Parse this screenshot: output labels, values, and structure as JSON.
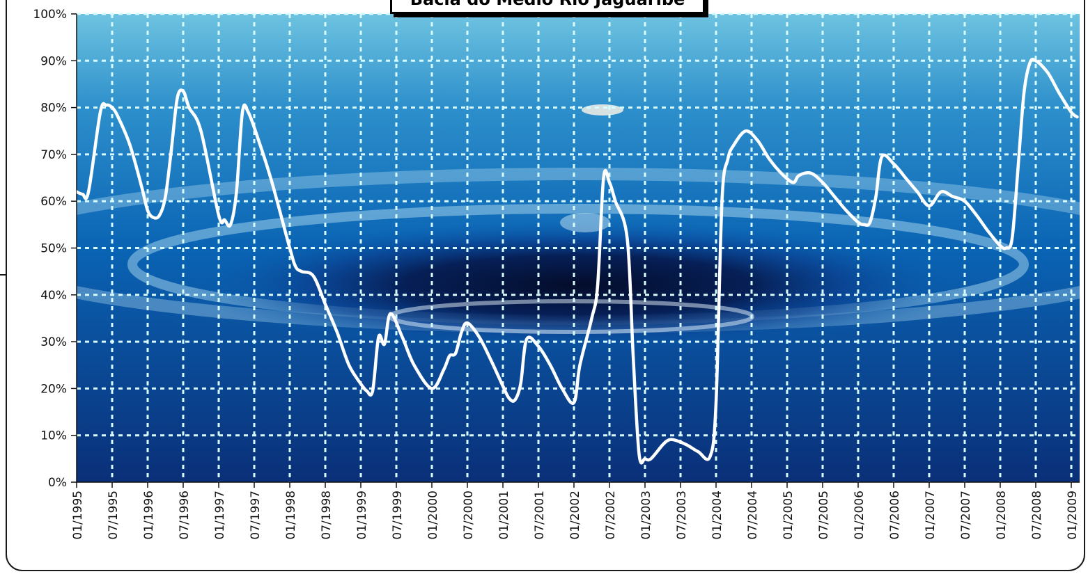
{
  "title": "Bacia do Médio Rio Jaguaribe",
  "colors": {
    "line": "#ffffff",
    "grid": "#d8fbff",
    "plot_top": "#6ec3e0",
    "plot_mid": "#0a64b4",
    "plot_bottom": "#0a2f78",
    "ripple_dark": "#030c2a"
  },
  "chart_data": {
    "type": "line",
    "title": "Bacia do Médio Rio Jaguaribe",
    "xlabel": "",
    "ylabel": "",
    "ylim": [
      0,
      100
    ],
    "y_ticks": [
      "0%",
      "10%",
      "20%",
      "30%",
      "40%",
      "50%",
      "60%",
      "70%",
      "80%",
      "90%",
      "100%"
    ],
    "x_ticks": [
      "01/1995",
      "07/1995",
      "01/1996",
      "07/1996",
      "01/1997",
      "07/1997",
      "01/1998",
      "07/1998",
      "01/1999",
      "07/1999",
      "01/2000",
      "07/2000",
      "01/2001",
      "07/2001",
      "01/2002",
      "07/2002",
      "01/2003",
      "07/2003",
      "01/2004",
      "07/2004",
      "01/2005",
      "07/2005",
      "01/2006",
      "07/2006",
      "01/2007",
      "07/2007",
      "01/2008",
      "07/2008",
      "01/2009"
    ],
    "grid": true,
    "x_range": [
      "1995-01",
      "2009-01"
    ],
    "series": [
      {
        "name": "",
        "points": [
          [
            "1995-01",
            62
          ],
          [
            "1995-02",
            61.5
          ],
          [
            "1995-03",
            62
          ],
          [
            "1995-05",
            79
          ],
          [
            "1995-06",
            80.5
          ],
          [
            "1995-07",
            80
          ],
          [
            "1995-08",
            78
          ],
          [
            "1995-10",
            72
          ],
          [
            "1995-12",
            63
          ],
          [
            "1996-01",
            58
          ],
          [
            "1996-02",
            56.5
          ],
          [
            "1996-03",
            57
          ],
          [
            "1996-04",
            61
          ],
          [
            "1996-05",
            71
          ],
          [
            "1996-06",
            82
          ],
          [
            "1996-07",
            83.5
          ],
          [
            "1996-08",
            80
          ],
          [
            "1996-10",
            75
          ],
          [
            "1997-01",
            57
          ],
          [
            "1997-02",
            56
          ],
          [
            "1997-03",
            55
          ],
          [
            "1997-04",
            62
          ],
          [
            "1997-05",
            79
          ],
          [
            "1997-06",
            79
          ],
          [
            "1997-08",
            72
          ],
          [
            "1997-10",
            64
          ],
          [
            "1998-01",
            50
          ],
          [
            "1998-02",
            46
          ],
          [
            "1998-03",
            45
          ],
          [
            "1998-05",
            44
          ],
          [
            "1998-07",
            38
          ],
          [
            "1998-09",
            32
          ],
          [
            "1998-11",
            25
          ],
          [
            "1999-01",
            21
          ],
          [
            "1999-02",
            19.5
          ],
          [
            "1999-03",
            19.5
          ],
          [
            "1999-04",
            31
          ],
          [
            "1999-05",
            29.5
          ],
          [
            "1999-06",
            36
          ],
          [
            "1999-08",
            31
          ],
          [
            "1999-10",
            25
          ],
          [
            "2000-01",
            20
          ],
          [
            "2000-03",
            24
          ],
          [
            "2000-04",
            27
          ],
          [
            "2000-05",
            27.5
          ],
          [
            "2000-06",
            32
          ],
          [
            "2000-07",
            34
          ],
          [
            "2000-09",
            31
          ],
          [
            "2000-11",
            26
          ],
          [
            "2001-01",
            20.5
          ],
          [
            "2001-02",
            18
          ],
          [
            "2001-03",
            17.5
          ],
          [
            "2001-04",
            21
          ],
          [
            "2001-05",
            30.5
          ],
          [
            "2001-07",
            29
          ],
          [
            "2001-09",
            25
          ],
          [
            "2001-11",
            20
          ],
          [
            "2002-01",
            17
          ],
          [
            "2002-02",
            25
          ],
          [
            "2002-04",
            35
          ],
          [
            "2002-05",
            42
          ],
          [
            "2002-06",
            65
          ],
          [
            "2002-07",
            64
          ],
          [
            "2002-08",
            60
          ],
          [
            "2002-10",
            52
          ],
          [
            "2002-11",
            27
          ],
          [
            "2002-12",
            6
          ],
          [
            "2003-01",
            5
          ],
          [
            "2003-02",
            5
          ],
          [
            "2003-04",
            8
          ],
          [
            "2003-05",
            9
          ],
          [
            "2003-06",
            9
          ],
          [
            "2003-08",
            8
          ],
          [
            "2003-10",
            6.5
          ],
          [
            "2003-12",
            5.5
          ],
          [
            "2004-01",
            17
          ],
          [
            "2004-02",
            60
          ],
          [
            "2004-03",
            69
          ],
          [
            "2004-04",
            72
          ],
          [
            "2004-06",
            75
          ],
          [
            "2004-08",
            73
          ],
          [
            "2004-10",
            69
          ],
          [
            "2004-12",
            66
          ],
          [
            "2005-02",
            64
          ],
          [
            "2005-03",
            65.5
          ],
          [
            "2005-05",
            66
          ],
          [
            "2005-07",
            64
          ],
          [
            "2005-09",
            61
          ],
          [
            "2005-11",
            58
          ],
          [
            "2006-01",
            55.5
          ],
          [
            "2006-02",
            55
          ],
          [
            "2006-03",
            55.5
          ],
          [
            "2006-04",
            61
          ],
          [
            "2006-05",
            69.5
          ],
          [
            "2006-07",
            68
          ],
          [
            "2006-09",
            65
          ],
          [
            "2006-11",
            62
          ],
          [
            "2007-01",
            59
          ],
          [
            "2007-03",
            62
          ],
          [
            "2007-05",
            61
          ],
          [
            "2007-07",
            60
          ],
          [
            "2007-09",
            57
          ],
          [
            "2007-11",
            53.5
          ],
          [
            "2008-01",
            50.5
          ],
          [
            "2008-02",
            50
          ],
          [
            "2008-03",
            52
          ],
          [
            "2008-04",
            67
          ],
          [
            "2008-05",
            83
          ],
          [
            "2008-06",
            89.5
          ],
          [
            "2008-07",
            90
          ],
          [
            "2008-09",
            87.5
          ],
          [
            "2008-11",
            83
          ],
          [
            "2009-01",
            79
          ],
          [
            "2009-02",
            78
          ]
        ]
      }
    ]
  }
}
